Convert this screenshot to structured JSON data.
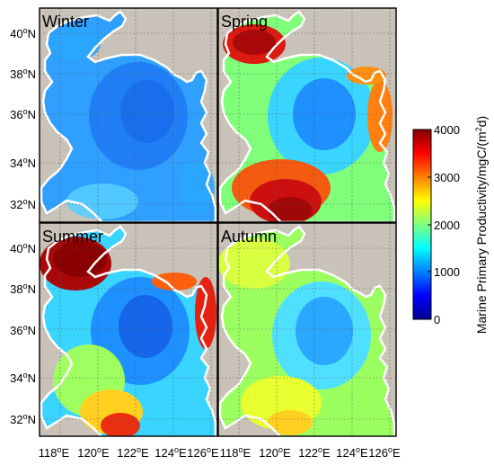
{
  "panels": [
    {
      "label": "Winter"
    },
    {
      "label": "Spring"
    },
    {
      "label": "Summer"
    },
    {
      "label": "Autumn"
    }
  ],
  "lat_ticks": [
    {
      "deg": "40",
      "hem": "N"
    },
    {
      "deg": "38",
      "hem": "N"
    },
    {
      "deg": "36",
      "hem": "N"
    },
    {
      "deg": "34",
      "hem": "N"
    },
    {
      "deg": "32",
      "hem": "N"
    }
  ],
  "lon_ticks": [
    {
      "deg": "118",
      "hem": "E"
    },
    {
      "deg": "120",
      "hem": "E"
    },
    {
      "deg": "122",
      "hem": "E"
    },
    {
      "deg": "124",
      "hem": "E"
    },
    {
      "deg": "126",
      "hem": "E"
    }
  ],
  "colorbar": {
    "label_main": "Marine Primary Productivity/mgC/(m",
    "label_sup": "2",
    "label_end": "d)",
    "ticks": [
      "4000",
      "3000",
      "2000",
      "1000",
      "0"
    ],
    "min": 0,
    "max": 4000,
    "colormap": "jet"
  },
  "colors": {
    "land": "#c8c2b8",
    "coast": "#ffffff",
    "grid": "#555555"
  }
}
